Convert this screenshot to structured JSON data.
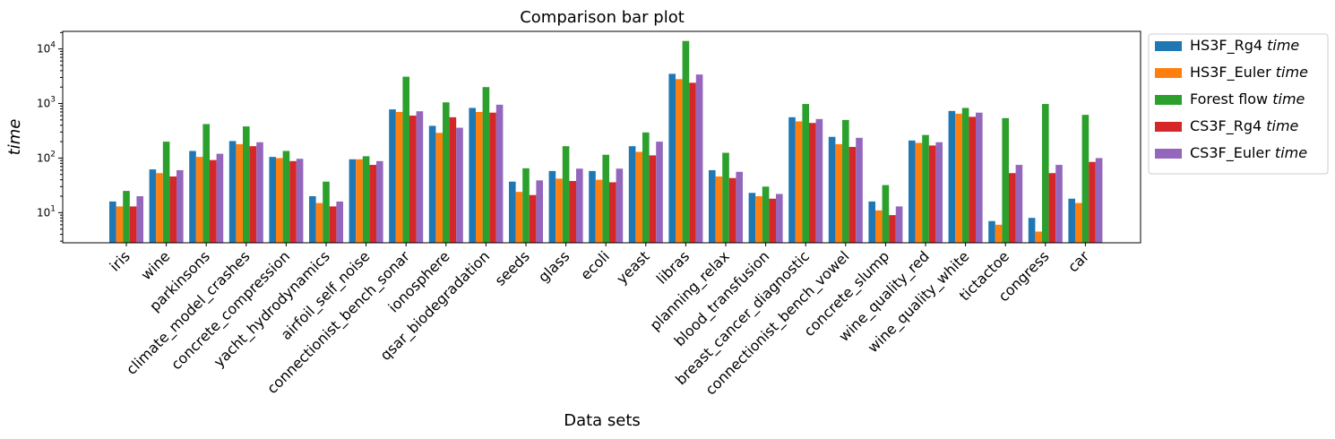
{
  "chart_data": {
    "type": "bar",
    "title": "Comparison bar plot",
    "xlabel": "Data sets",
    "ylabel": "time",
    "yscale": "log",
    "ylim": [
      2.8,
      21000
    ],
    "y_ticks": [
      {
        "value": 10,
        "base": "10",
        "exp": "1"
      },
      {
        "value": 100,
        "base": "10",
        "exp": "2"
      },
      {
        "value": 1000,
        "base": "10",
        "exp": "3"
      },
      {
        "value": 10000,
        "base": "10",
        "exp": "4"
      }
    ],
    "legend_position": "outside-right",
    "categories": [
      "iris",
      "wine",
      "parkinsons",
      "climate_model_crashes",
      "concrete_compression",
      "yacht_hydrodynamics",
      "airfoil_self_noise",
      "connectionist_bench_sonar",
      "ionosphere",
      "qsar_biodegradation",
      "seeds",
      "glass",
      "ecoli",
      "yeast",
      "libras",
      "planning_relax",
      "blood_transfusion",
      "breast_cancer_diagnostic",
      "connectionist_bench_vowel",
      "concrete_slump",
      "wine_quality_red",
      "wine_quality_white",
      "tictactoe",
      "congress",
      "car"
    ],
    "series": [
      {
        "name": "HS3F_Rg4",
        "label_suffix": "time",
        "color": "#1f77b4",
        "values": [
          16,
          62,
          135,
          205,
          105,
          20,
          95,
          780,
          390,
          830,
          37,
          58,
          58,
          165,
          3500,
          60,
          23,
          560,
          245,
          16,
          210,
          730,
          7,
          8,
          18
        ]
      },
      {
        "name": "HS3F_Euler",
        "label_suffix": "time",
        "color": "#ff7f0e",
        "values": [
          13,
          53,
          105,
          180,
          100,
          15,
          95,
          700,
          290,
          700,
          24,
          42,
          40,
          130,
          2800,
          46,
          20,
          470,
          180,
          11,
          190,
          650,
          6,
          4.5,
          15
        ]
      },
      {
        "name": "Forest flow",
        "label_suffix": "time",
        "color": "#2ca02c",
        "values": [
          25,
          200,
          420,
          380,
          135,
          37,
          108,
          3100,
          1050,
          2000,
          65,
          165,
          115,
          295,
          14000,
          125,
          30,
          980,
          500,
          32,
          265,
          830,
          540,
          980,
          620
        ]
      },
      {
        "name": "CS3F_Rg4",
        "label_suffix": "time",
        "color": "#d62728",
        "values": [
          13,
          46,
          92,
          165,
          88,
          13,
          75,
          600,
          560,
          680,
          21,
          38,
          36,
          112,
          2400,
          43,
          18,
          440,
          160,
          9,
          170,
          570,
          53,
          53,
          85
        ]
      },
      {
        "name": "CS3F_Euler",
        "label_suffix": "time",
        "color": "#9467bd",
        "values": [
          20,
          60,
          120,
          195,
          97,
          16,
          88,
          720,
          360,
          950,
          39,
          64,
          64,
          200,
          3400,
          56,
          22,
          520,
          235,
          13,
          195,
          680,
          75,
          75,
          100
        ]
      }
    ]
  }
}
